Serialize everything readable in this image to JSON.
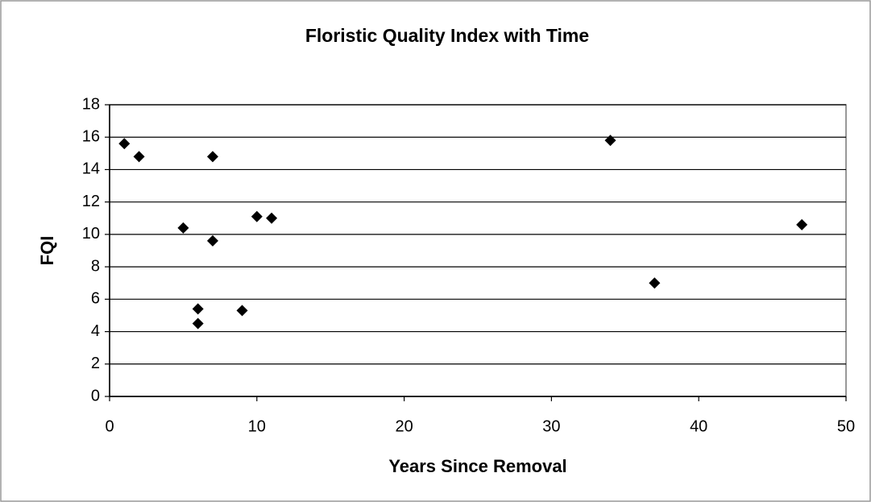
{
  "chart_data": {
    "type": "scatter",
    "title": "Floristic Quality Index with Time",
    "x_label": "Years Since Removal",
    "y_label": "FQI",
    "series": [
      {
        "name": "FQI",
        "color": "#000000",
        "x": [
          1,
          2,
          5,
          6,
          6,
          7,
          7,
          9,
          10,
          11,
          34,
          37,
          47
        ],
        "values": [
          15.6,
          14.8,
          10.4,
          5.4,
          4.5,
          14.8,
          9.6,
          5.3,
          11.1,
          11.0,
          15.8,
          7.0,
          10.6
        ]
      }
    ],
    "xlim": [
      0,
      50
    ],
    "xticks": [
      0,
      10,
      20,
      30,
      40,
      50
    ],
    "ylim": [
      0,
      18
    ],
    "yticks": [
      0,
      2,
      4,
      6,
      8,
      10,
      12,
      14,
      16,
      18
    ],
    "grid": true
  }
}
